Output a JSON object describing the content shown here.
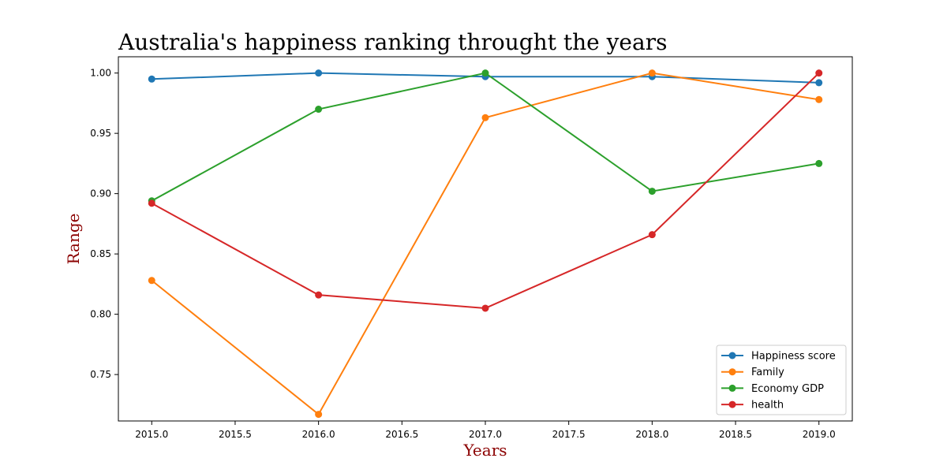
{
  "chart_data": {
    "type": "line",
    "title": "Australia's happiness ranking throught the years",
    "xlabel": "Years",
    "ylabel": "Range",
    "x": [
      2015,
      2016,
      2017,
      2018,
      2019
    ],
    "xlim": [
      2014.8,
      2019.2
    ],
    "ylim": [
      0.7115,
      1.0135
    ],
    "xticks": [
      2015.0,
      2015.5,
      2016.0,
      2016.5,
      2017.0,
      2017.5,
      2018.0,
      2018.5,
      2019.0
    ],
    "xtick_labels": [
      "2015.0",
      "2015.5",
      "2016.0",
      "2016.5",
      "2017.0",
      "2017.5",
      "2018.0",
      "2018.5",
      "2019.0"
    ],
    "yticks": [
      0.75,
      0.8,
      0.85,
      0.9,
      0.95,
      1.0
    ],
    "ytick_labels": [
      "0.75",
      "0.80",
      "0.85",
      "0.90",
      "0.95",
      "1.00"
    ],
    "grid": false,
    "legend_position": "bottom-right",
    "series": [
      {
        "name": "Happiness score",
        "color": "#1f77b4",
        "values": [
          0.995,
          1.0,
          0.997,
          0.997,
          0.992
        ]
      },
      {
        "name": "Family",
        "color": "#ff7f0e",
        "values": [
          0.828,
          0.717,
          0.963,
          1.0,
          0.978
        ]
      },
      {
        "name": "Economy GDP",
        "color": "#2ca02c",
        "values": [
          0.894,
          0.97,
          1.0,
          0.902,
          0.925
        ]
      },
      {
        "name": "health",
        "color": "#d62728",
        "values": [
          0.892,
          0.816,
          0.805,
          0.866,
          1.0
        ]
      }
    ]
  }
}
